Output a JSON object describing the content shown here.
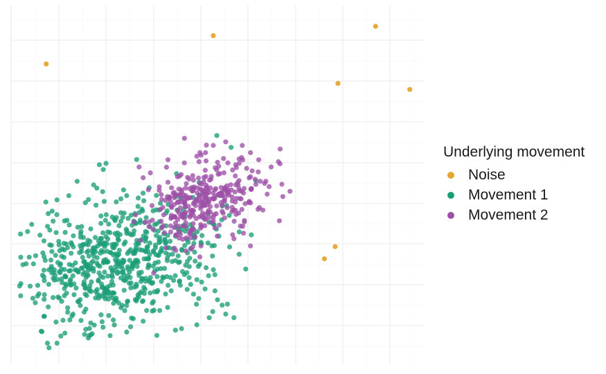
{
  "chart_data": {
    "type": "scatter",
    "title": "",
    "xlabel": "",
    "ylabel": "",
    "xlim": [
      0,
      100
    ],
    "ylim": [
      0,
      100
    ],
    "grid": true,
    "axis_ticks_shown": false,
    "legend": {
      "title": "Underlying movement",
      "position": "right"
    },
    "series": [
      {
        "name": "Noise",
        "color": "#E6A532",
        "points": [
          [
            8.5,
            83.7
          ],
          [
            49,
            91.6
          ],
          [
            88.3,
            94.2
          ],
          [
            79.2,
            78.3
          ],
          [
            96.6,
            76.6
          ],
          [
            78.5,
            32.8
          ],
          [
            75.9,
            29.4
          ]
        ]
      },
      {
        "name": "Movement 1",
        "color": "#1B9E77",
        "generator": {
          "n": 650,
          "center": [
            26,
            29
          ],
          "spread": [
            11.5,
            9
          ],
          "correlation": 0.25,
          "seed": 11
        },
        "points": [
          [
            5,
            39
          ],
          [
            4,
            37
          ],
          [
            8,
            30
          ],
          [
            12,
            28
          ],
          [
            9,
            16
          ],
          [
            15,
            14
          ],
          [
            19,
            10
          ],
          [
            24,
            8
          ],
          [
            28,
            9
          ],
          [
            32,
            12
          ],
          [
            36,
            15
          ],
          [
            45,
            11
          ],
          [
            48,
            13
          ],
          [
            52,
            14
          ],
          [
            54,
            13
          ],
          [
            50,
            18
          ],
          [
            47,
            21
          ],
          [
            41,
            22
          ],
          [
            42,
            25
          ],
          [
            46,
            34
          ],
          [
            44,
            38
          ],
          [
            30,
            42
          ],
          [
            28,
            47
          ],
          [
            23,
            56
          ],
          [
            20,
            50
          ],
          [
            16,
            51
          ],
          [
            14,
            47
          ],
          [
            9,
            42
          ],
          [
            7,
            36
          ]
        ]
      },
      {
        "name": "Movement 2",
        "color": "#9E4FA7",
        "generator": {
          "n": 330,
          "center": [
            47,
            46
          ],
          "spread": [
            7,
            5.5
          ],
          "correlation": 0.35,
          "seed": 29
        },
        "points": [
          [
            42,
            63
          ],
          [
            49,
            61
          ],
          [
            52,
            62
          ],
          [
            56,
            61
          ],
          [
            58,
            59
          ],
          [
            63,
            55
          ],
          [
            60,
            57
          ],
          [
            65,
            40
          ],
          [
            58,
            33
          ],
          [
            54,
            35
          ],
          [
            46,
            33
          ],
          [
            40,
            36
          ],
          [
            31,
            55
          ],
          [
            32,
            52
          ],
          [
            38,
            57
          ],
          [
            45,
            58
          ],
          [
            55,
            50
          ],
          [
            58,
            45
          ],
          [
            61,
            43
          ]
        ]
      }
    ]
  }
}
